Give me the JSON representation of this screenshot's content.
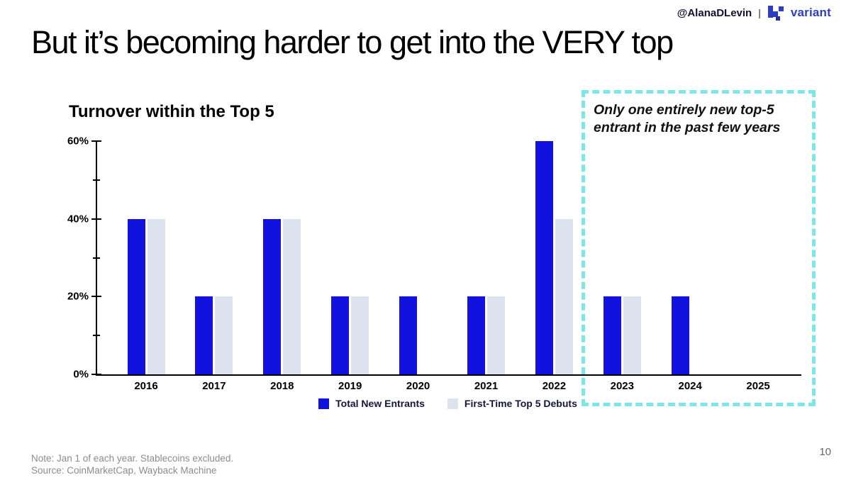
{
  "header": {
    "handle": "@AlanaDLevin",
    "separator": "|",
    "brand": "variant"
  },
  "slide": {
    "title": "But it’s becoming harder to get into the VERY top",
    "page_number": "10"
  },
  "chart_data": {
    "type": "bar",
    "title": "Turnover within the Top 5",
    "categories": [
      "2016",
      "2017",
      "2018",
      "2019",
      "2020",
      "2021",
      "2022",
      "2023",
      "2024",
      "2025"
    ],
    "series": [
      {
        "name": "Total New Entrants",
        "color": "#1212DE",
        "values": [
          40,
          20,
          40,
          20,
          20,
          20,
          60,
          20,
          20,
          0
        ]
      },
      {
        "name": "First-Time Top 5 Debuts",
        "color": "#DCE3EF",
        "values": [
          40,
          20,
          40,
          20,
          0,
          20,
          40,
          20,
          0,
          0
        ]
      }
    ],
    "xlabel": "",
    "ylabel": "",
    "ylim": [
      0,
      60
    ],
    "yticks": [
      0,
      20,
      40,
      60
    ],
    "ytick_labels": [
      "0%",
      "20%",
      "40%",
      "60%"
    ],
    "minor_yticks": [
      10,
      30,
      50
    ],
    "grid": false,
    "legend_position": "bottom"
  },
  "annotation": {
    "line1": "Only one entirely new top-5",
    "line2": "entrant in the past few years",
    "box_color": "#7BE8E5"
  },
  "footer": {
    "note_line1": "Note: Jan 1 of each year. Stablecoins excluded.",
    "note_line2": "Source: CoinMarketCap, Wayback Machine"
  },
  "colors": {
    "bar_primary": "#1212DE",
    "bar_secondary": "#DCE3EF",
    "accent_cyan": "#7BE8E5",
    "brand_blue": "#2E3DC2"
  }
}
